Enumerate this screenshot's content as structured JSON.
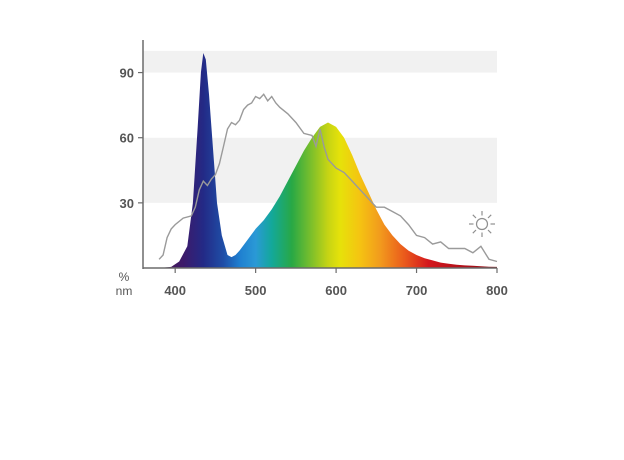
{
  "chart_data": {
    "type": "area",
    "title": "",
    "xlabel": "nm",
    "ylabel": "%",
    "xlim": [
      360,
      800
    ],
    "ylim": [
      0,
      105
    ],
    "x_ticks": [
      400,
      500,
      600,
      700,
      800
    ],
    "y_ticks": [
      30,
      60,
      90
    ],
    "grid": "alternating horizontal bands",
    "series": [
      {
        "style": "filled spectral gradient",
        "x": [
          380,
          395,
          405,
          415,
          422,
          428,
          432,
          435,
          438,
          442,
          447,
          452,
          458,
          465,
          470,
          475,
          480,
          490,
          500,
          510,
          520,
          530,
          540,
          550,
          560,
          570,
          580,
          590,
          600,
          610,
          620,
          630,
          640,
          650,
          660,
          670,
          680,
          690,
          700,
          710,
          720,
          730,
          740,
          750,
          760,
          770,
          780,
          790,
          800
        ],
        "y": [
          0,
          0.5,
          3,
          10,
          30,
          65,
          90,
          99,
          96,
          80,
          55,
          30,
          15,
          6,
          5,
          6,
          8,
          13,
          18,
          22,
          27,
          33,
          40,
          47,
          54,
          60,
          65,
          67,
          65,
          60,
          52,
          43,
          35,
          27,
          20,
          15,
          11,
          8,
          6,
          4.5,
          3.5,
          2.5,
          2,
          1.5,
          1.2,
          1,
          0.8,
          0.6,
          0.5
        ]
      },
      {
        "style": "grey line",
        "x": [
          380,
          385,
          390,
          395,
          400,
          410,
          420,
          425,
          430,
          435,
          440,
          445,
          450,
          455,
          460,
          465,
          470,
          475,
          480,
          485,
          490,
          495,
          500,
          505,
          510,
          515,
          520,
          525,
          530,
          540,
          550,
          560,
          570,
          575,
          580,
          585,
          590,
          600,
          610,
          620,
          630,
          640,
          650,
          660,
          670,
          680,
          690,
          700,
          710,
          720,
          730,
          740,
          750,
          760,
          770,
          780,
          790,
          800
        ],
        "y": [
          4,
          6,
          14,
          18,
          20,
          23,
          24,
          28,
          36,
          40,
          38,
          41,
          43,
          48,
          56,
          64,
          67,
          66,
          68,
          73,
          75,
          76,
          79,
          78,
          80,
          77,
          79,
          76,
          74,
          71,
          67,
          62,
          61,
          56,
          64,
          56,
          50,
          46,
          44,
          40,
          36,
          32,
          28,
          28,
          26,
          24,
          20,
          15,
          14,
          11,
          12,
          9,
          9,
          9,
          7,
          10,
          4,
          3
        ]
      }
    ]
  },
  "icons": {
    "reference_light": "sun-icon"
  }
}
